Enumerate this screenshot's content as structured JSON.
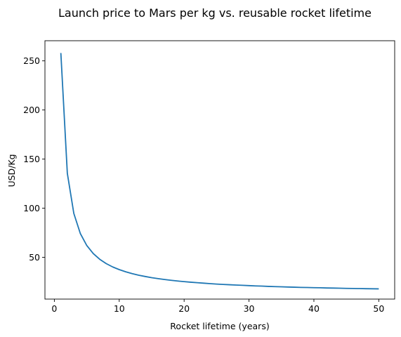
{
  "chart_data": {
    "type": "line",
    "title": "Launch price to Mars per kg vs. reusable rocket lifetime",
    "xlabel": "Rocket lifetime (years)",
    "ylabel": "USD/Kg",
    "xlim": [
      -1.45,
      52.45
    ],
    "ylim": [
      7.5,
      270.5
    ],
    "xticks": [
      0,
      10,
      20,
      30,
      40,
      50
    ],
    "yticks": [
      50,
      100,
      150,
      200,
      250
    ],
    "grid": false,
    "series_color": "#1f77b4",
    "series": [
      {
        "x": [
          1,
          2,
          3,
          4,
          5,
          6,
          7,
          8,
          9,
          10,
          11,
          12,
          13,
          14,
          15,
          16,
          17,
          18,
          19,
          20,
          21,
          22,
          23,
          24,
          25,
          26,
          27,
          28,
          29,
          30,
          31,
          32,
          33,
          34,
          35,
          36,
          37,
          38,
          39,
          40,
          41,
          42,
          43,
          44,
          45,
          46,
          47,
          48,
          49,
          50
        ],
        "y": [
          258.0,
          135.5,
          94.7,
          74.3,
          62.0,
          53.8,
          48.0,
          43.6,
          40.2,
          37.5,
          35.3,
          33.4,
          31.8,
          30.5,
          29.3,
          28.3,
          27.4,
          26.6,
          25.9,
          25.3,
          24.7,
          24.2,
          23.7,
          23.2,
          22.8,
          22.4,
          22.1,
          21.8,
          21.5,
          21.2,
          20.9,
          20.7,
          20.4,
          20.2,
          20.0,
          19.8,
          19.6,
          19.4,
          19.3,
          19.1,
          19.0,
          18.8,
          18.7,
          18.6,
          18.4,
          18.3,
          18.2,
          18.1,
          18.0,
          17.9
        ]
      }
    ]
  }
}
